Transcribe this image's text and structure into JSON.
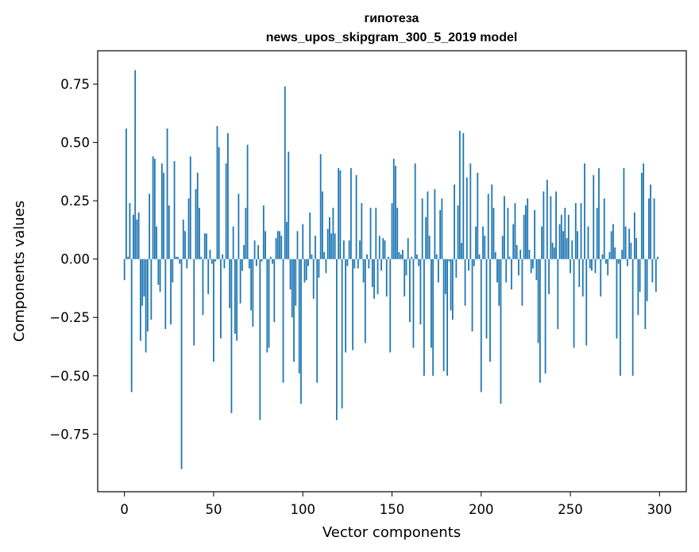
{
  "chart_data": {
    "type": "bar",
    "title": "гипотеза",
    "subtitle": "news_upos_skipgram_300_5_2019 model",
    "xlabel": "Vector components",
    "ylabel": "Components values",
    "xlim": [
      -15,
      315
    ],
    "ylim": [
      -0.997,
      0.893
    ],
    "bar_color": "#1f77b4",
    "x_ticks": [
      {
        "value": 0,
        "label": "0"
      },
      {
        "value": 50,
        "label": "50"
      },
      {
        "value": 100,
        "label": "100"
      },
      {
        "value": 150,
        "label": "150"
      },
      {
        "value": 200,
        "label": "200"
      },
      {
        "value": 250,
        "label": "250"
      },
      {
        "value": 300,
        "label": "300"
      }
    ],
    "y_ticks": [
      {
        "value": 0.75,
        "label": "0.75"
      },
      {
        "value": 0.5,
        "label": "0.50"
      },
      {
        "value": 0.25,
        "label": "0.25"
      },
      {
        "value": 0.0,
        "label": "0.00"
      },
      {
        "value": -0.25,
        "label": "−0.25"
      },
      {
        "value": -0.5,
        "label": "−0.50"
      },
      {
        "value": -0.75,
        "label": "−0.75"
      }
    ],
    "values": [
      -0.09,
      0.56,
      0.01,
      0.24,
      -0.57,
      0.19,
      0.81,
      0.17,
      0.2,
      -0.35,
      -0.2,
      -0.16,
      -0.4,
      -0.31,
      0.28,
      -0.26,
      0.44,
      0.43,
      0.14,
      -0.11,
      -0.14,
      0.41,
      0.37,
      -0.3,
      0.56,
      0.23,
      -0.28,
      -0.1,
      0.42,
      0.01,
      0.01,
      -0.02,
      -0.9,
      0.17,
      0.12,
      -0.04,
      0.26,
      0.44,
      0.0,
      -0.37,
      0.3,
      0.37,
      0.22,
      0.01,
      -0.24,
      0.11,
      0.11,
      -0.15,
      0.04,
      -0.02,
      -0.44,
      -0.01,
      0.57,
      0.48,
      -0.34,
      0.02,
      -0.04,
      0.41,
      0.54,
      -0.21,
      -0.66,
      0.14,
      -0.32,
      -0.35,
      0.28,
      -0.19,
      -0.05,
      0.06,
      0.22,
      0.49,
      -0.04,
      -0.22,
      -0.29,
      0.08,
      -0.03,
      0.06,
      -0.69,
      -0.01,
      0.23,
      0.12,
      -0.4,
      -0.38,
      0.01,
      -0.02,
      -0.27,
      0.09,
      0.12,
      0.12,
      0.1,
      -0.53,
      0.74,
      0.16,
      0.46,
      -0.13,
      -0.25,
      -0.44,
      -0.2,
      0.12,
      -0.49,
      -0.62,
      0.15,
      -0.1,
      -0.09,
      -0.03,
      0.2,
      0.02,
      -0.17,
      0.1,
      -0.53,
      -0.08,
      0.45,
      0.29,
      0.03,
      -0.06,
      0.13,
      0.18,
      0.11,
      0.22,
      0.11,
      -0.69,
      0.39,
      0.38,
      -0.64,
      0.08,
      -0.4,
      -0.03,
      0.08,
      0.39,
      -0.39,
      -0.04,
      0.36,
      -0.04,
      0.08,
      0.24,
      -0.1,
      -0.36,
      0.02,
      -0.04,
      0.22,
      -0.12,
      -0.17,
      0.22,
      -0.15,
      0.1,
      -0.05,
      0.09,
      0.08,
      -0.16,
      0.01,
      -0.4,
      0.24,
      0.43,
      0.4,
      0.22,
      0.03,
      0.02,
      0.04,
      -0.16,
      -0.07,
      0.09,
      -0.27,
      0.01,
      -0.38,
      0.41,
      0.02,
      -0.03,
      -0.28,
      0.26,
      -0.5,
      0.18,
      0.29,
      0.1,
      -0.38,
      -0.5,
      0.3,
      0.02,
      -0.1,
      0.21,
      0.26,
      -0.48,
      -0.15,
      -0.5,
      -0.01,
      -0.22,
      -0.26,
      0.32,
      -0.08,
      0.23,
      0.55,
      0.07,
      0.54,
      -0.2,
      0.35,
      -0.05,
      0.41,
      -0.31,
      -0.03,
      0.14,
      0.37,
      0.02,
      -0.57,
      0.14,
      0.1,
      -0.34,
      0.28,
      -0.44,
      0.32,
      0.22,
      0.03,
      -0.1,
      -0.2,
      -0.62,
      0.1,
      0.27,
      -0.1,
      0.22,
      0.01,
      -0.13,
      0.15,
      0.24,
      0.06,
      -0.07,
      0.04,
      -0.2,
      0.19,
      0.23,
      0.26,
      0.04,
      -0.06,
      -0.04,
      0.21,
      -0.09,
      -0.36,
      -0.53,
      0.14,
      0.29,
      -0.49,
      0.34,
      -0.15,
      0.27,
      0.07,
      0.05,
      0.29,
      -0.3,
      0.15,
      0.19,
      0.12,
      0.22,
      0.09,
      0.19,
      -0.06,
      0.08,
      -0.38,
      0.24,
      0.12,
      -0.12,
      0.24,
      -0.16,
      0.41,
      -0.37,
      0.14,
      -0.04,
      -0.05,
      0.36,
      -0.06,
      0.22,
      0.39,
      -0.16,
      0.02,
      0.26,
      -0.02,
      -0.07,
      0.03,
      0.12,
      0.15,
      0.05,
      -0.34,
      -0.02,
      -0.5,
      0.04,
      0.39,
      0.14,
      -0.03,
      0.13,
      0.07,
      -0.5,
      0.2,
      0.09,
      -0.24,
      -0.14,
      0.37,
      0.41,
      -0.3,
      -0.18,
      0.26,
      0.32,
      -0.1,
      0.26,
      -0.14,
      0.01
    ]
  }
}
